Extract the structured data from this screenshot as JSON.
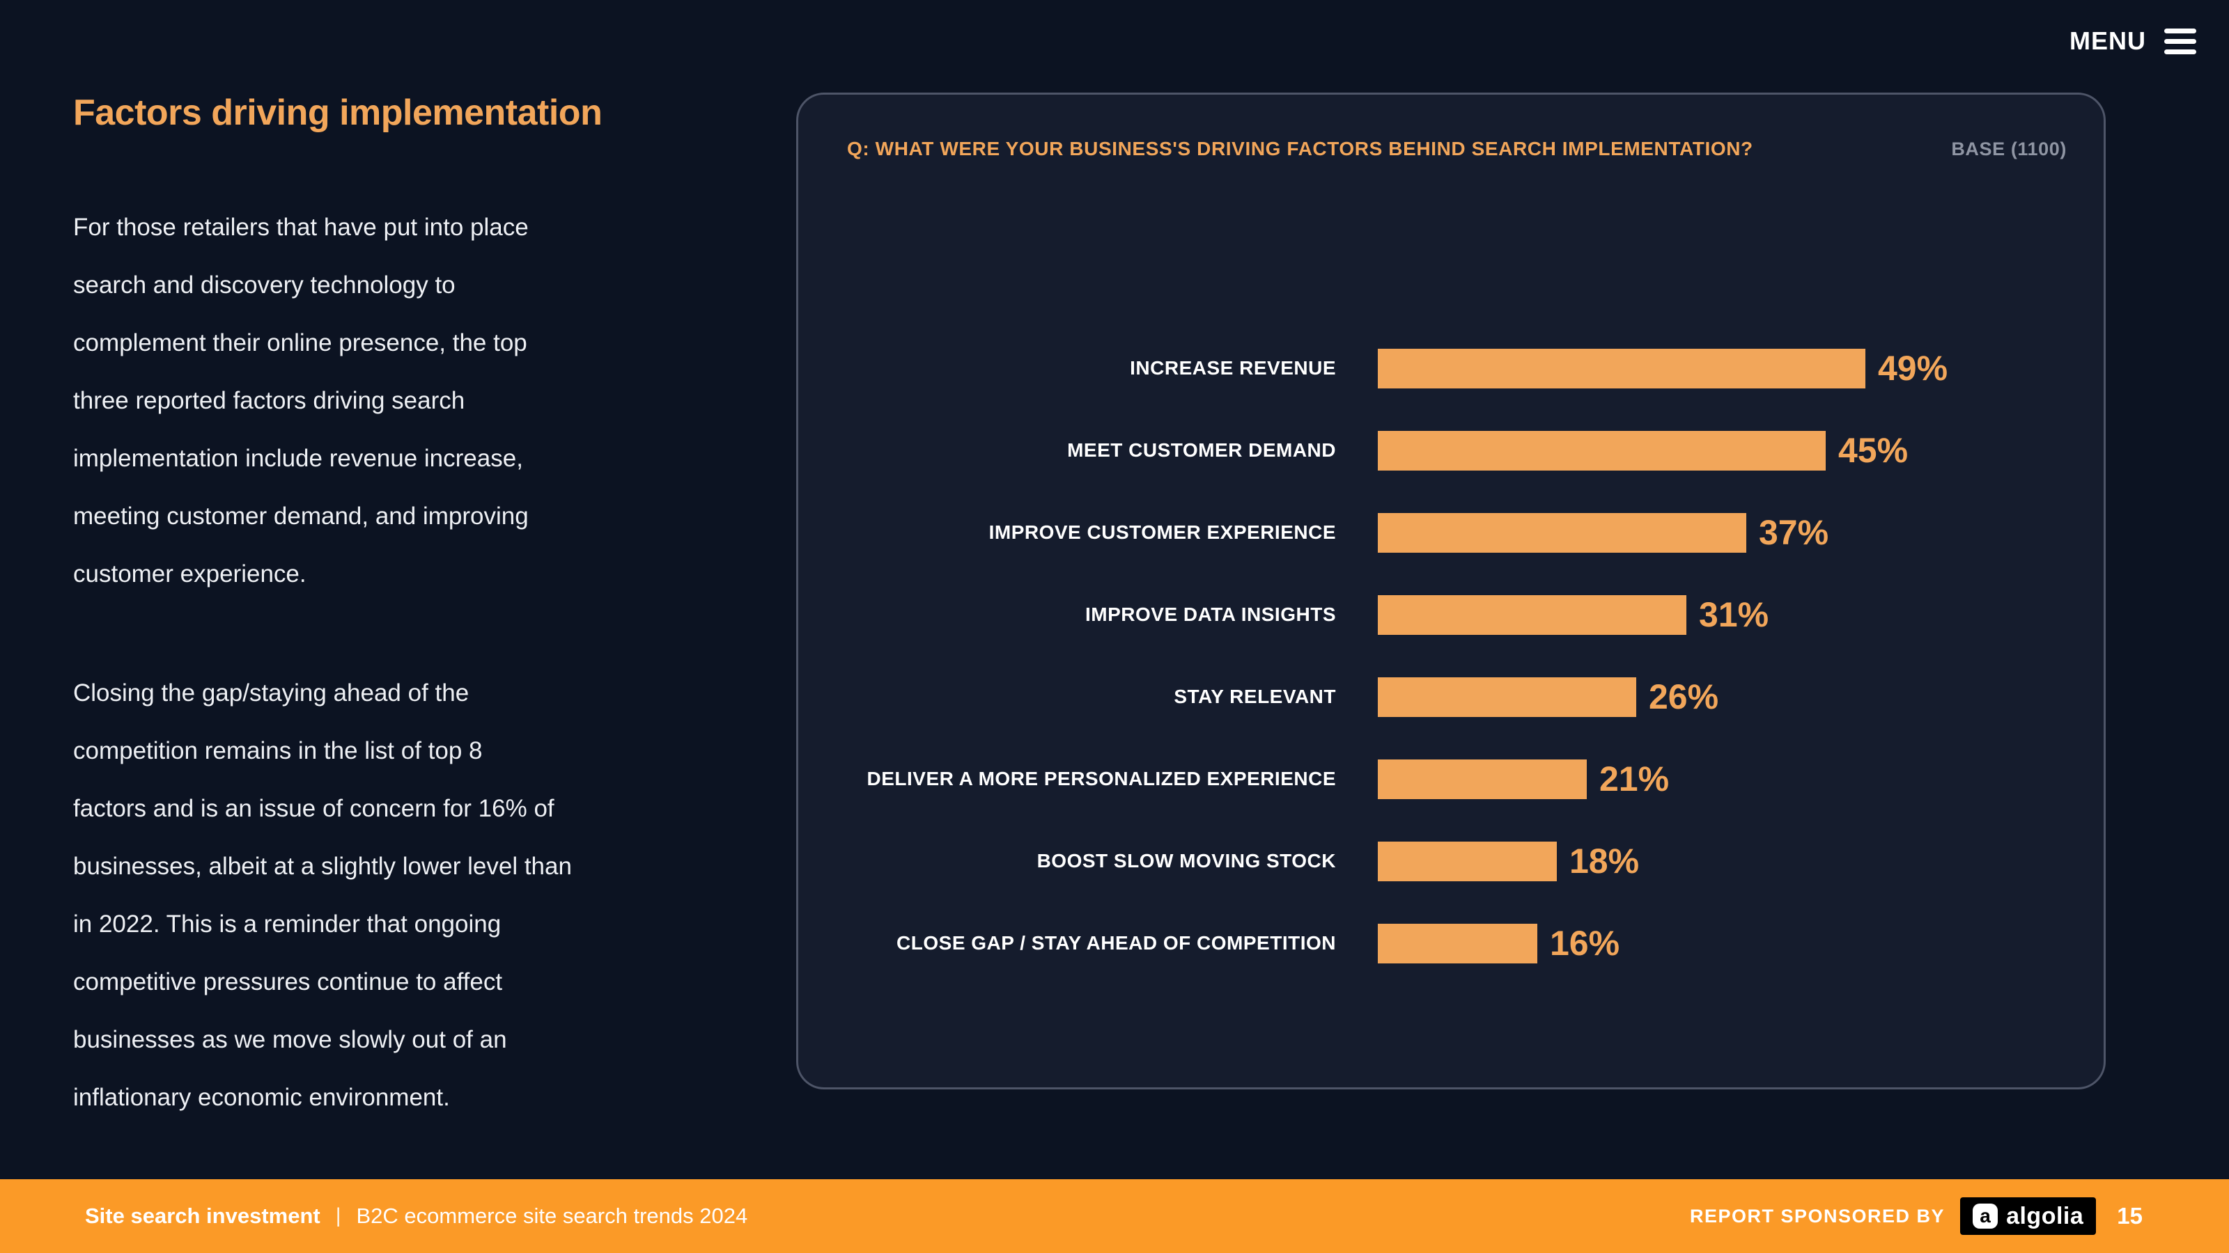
{
  "menu": {
    "label": "MENU"
  },
  "left_column": {
    "heading": "Factors driving implementation",
    "paragraph1": "For those retailers that have put into place\nsearch and discovery technology to\ncomplement their online presence, the top\nthree reported factors driving search\nimplementation include revenue increase,\nmeeting customer demand, and improving\ncustomer experience.",
    "paragraph2": "Closing the gap/staying ahead of the\ncompetition remains in the list of top 8\nfactors and is an issue of concern for 16% of\nbusinesses, albeit at a slightly lower level than\nin 2022. This is a reminder that ongoing\ncompetitive pressures continue to affect\nbusinesses as we move slowly out of an\ninflationary economic environment."
  },
  "chart_panel": {
    "question": "Q: WHAT WERE YOUR BUSINESS'S DRIVING FACTORS BEHIND SEARCH IMPLEMENTATION?",
    "base": "BASE (1100)"
  },
  "chart_data": {
    "type": "bar",
    "orientation": "horizontal",
    "title": "Q: WHAT WERE YOUR BUSINESS'S DRIVING FACTORS BEHIND SEARCH IMPLEMENTATION?",
    "base_label": "BASE (1100)",
    "categories": [
      "INCREASE REVENUE",
      "MEET CUSTOMER DEMAND",
      "IMPROVE CUSTOMER EXPERIENCE",
      "IMPROVE DATA INSIGHTS",
      "STAY RELEVANT",
      "DELIVER A MORE PERSONALIZED EXPERIENCE",
      "BOOST SLOW MOVING STOCK",
      "CLOSE GAP / STAY AHEAD OF COMPETITION"
    ],
    "values": [
      49,
      45,
      37,
      31,
      26,
      21,
      18,
      16
    ],
    "value_suffix": "%",
    "xlim": [
      0,
      49
    ],
    "grid": false,
    "legend": false,
    "bar_color": "#f2a65a",
    "label_color": "#ffffff",
    "value_color": "#f2a65a"
  },
  "footer": {
    "section": "Site search investment",
    "separator": "|",
    "report_title": "B2C ecommerce site search trends 2024",
    "sponsored_label": "REPORT SPONSORED BY",
    "sponsor_mark": "a",
    "sponsor_name": "algolia",
    "page_number": "15"
  },
  "colors": {
    "page_background": "#0c1322",
    "panel_background": "#151c2d",
    "panel_border": "#4e5568",
    "accent_orange": "#f2a65a",
    "footer_orange": "#fb9a27",
    "body_text": "#eef0f4",
    "base_gray": "#8f95a3"
  }
}
